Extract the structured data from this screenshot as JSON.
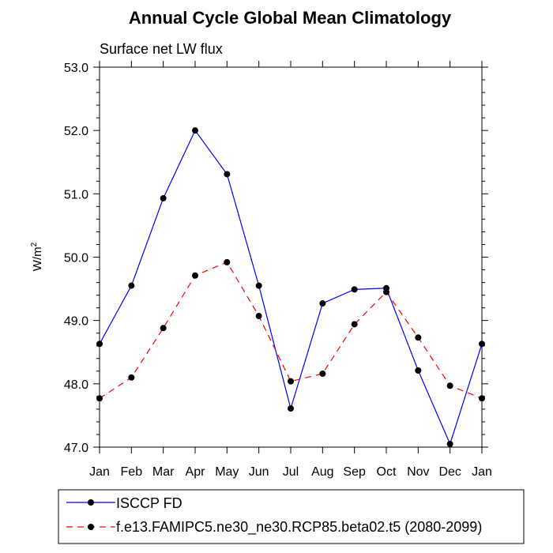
{
  "chart_data": {
    "type": "line",
    "title": "Annual Cycle Global Mean Climatology",
    "subtitle": "Surface net LW flux",
    "ylabel_main": "W/m",
    "ylabel_sup": "2",
    "xlabel": "",
    "categories": [
      "Jan",
      "Feb",
      "Mar",
      "Apr",
      "May",
      "Jun",
      "Jul",
      "Aug",
      "Sep",
      "Oct",
      "Nov",
      "Dec",
      "Jan"
    ],
    "ylim": [
      47.0,
      53.0
    ],
    "yticks": [
      "47.0",
      "48.0",
      "49.0",
      "50.0",
      "51.0",
      "52.0",
      "53.0"
    ],
    "grid": false,
    "legend_position": "bottom",
    "series": [
      {
        "name": "ISCCP FD",
        "color": "#0000ff",
        "style": "solid",
        "values": [
          48.63,
          49.55,
          50.93,
          52.0,
          51.31,
          49.55,
          47.61,
          49.27,
          49.49,
          49.51,
          48.21,
          47.05,
          48.63
        ]
      },
      {
        "name": "f.e13.FAMIPC5.ne30_ne30.RCP85.beta02.t5 (2080-2099)",
        "color": "#ff0000",
        "style": "dashed",
        "values": [
          47.77,
          48.1,
          48.88,
          49.71,
          49.92,
          49.07,
          48.04,
          48.16,
          48.94,
          49.45,
          48.73,
          47.97,
          47.77
        ]
      }
    ]
  }
}
